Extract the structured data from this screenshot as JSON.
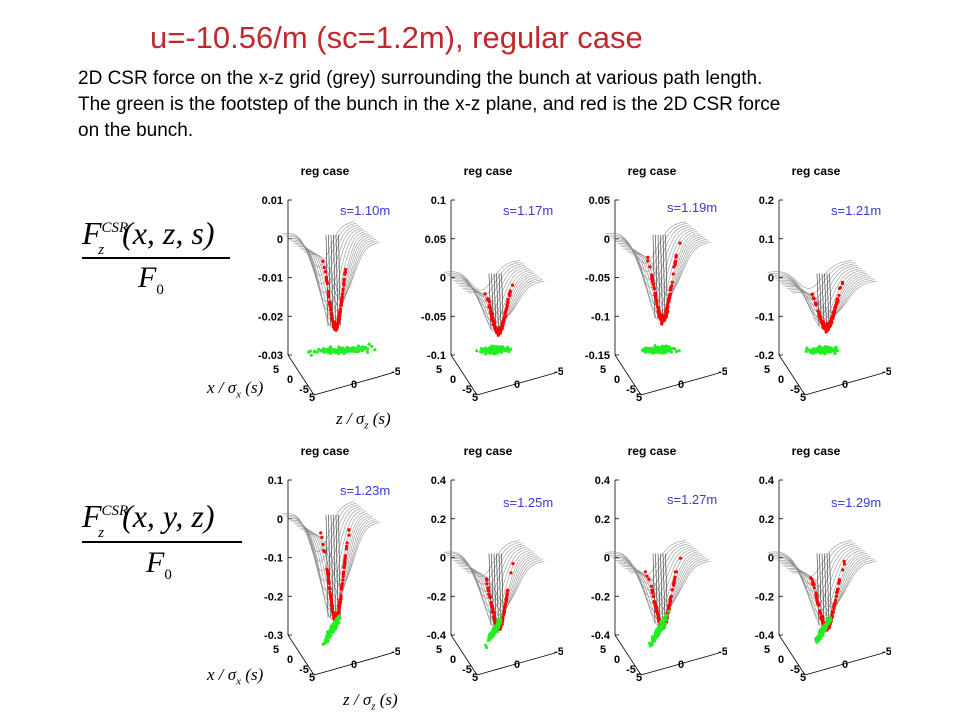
{
  "slide": {
    "title": "u=-10.56/m  (sc=1.2m), regular case",
    "description": [
      "2D CSR force on the x-z grid (grey) surrounding the bunch at various path length.",
      "The green is the footstep of the bunch in the x-z plane, and red is the 2D CSR force",
      "on the bunch."
    ]
  },
  "formulas": {
    "row1": {
      "numerator_base": "F",
      "superscript": "CSR",
      "subscript": "z",
      "args": "(x, z, s)",
      "denominator_base": "F",
      "denominator_sub": "0"
    },
    "row2": {
      "numerator_base": "F",
      "superscript": "CSR",
      "subscript": "z",
      "args": "(x, y, z)",
      "denominator_base": "F",
      "denominator_sub": "0"
    }
  },
  "axis_names": {
    "row1": {
      "x": {
        "base": "x / σ",
        "sub": "x",
        "arg": "(s)"
      },
      "z": {
        "base": "z / σ",
        "sub": "z",
        "arg": "(s)"
      }
    },
    "row2": {
      "x": {
        "base": "x / σ",
        "sub": "x",
        "arg": "(s)"
      },
      "z": {
        "base": "z / σ",
        "sub": "z",
        "arg": "(s)"
      }
    }
  },
  "colors": {
    "title": "#c0282d",
    "annotation": "#3a3ad8",
    "surface": "#8c8c8c",
    "force_points": "#ff0000",
    "footprint": "#22ee22"
  },
  "chart_data": [
    {
      "type": "scatter",
      "title": "reg case",
      "annotation": "s=1.10m",
      "yticks": [
        "0.01",
        "0",
        "-0.01",
        "-0.02",
        "-0.03"
      ],
      "ylim": [
        -0.03,
        0.01
      ],
      "xticks": [
        "5",
        "0",
        "-5"
      ],
      "zticks": [
        "5",
        "0",
        "-5"
      ],
      "min_force": -0.023
    },
    {
      "type": "scatter",
      "title": "reg case",
      "annotation": "s=1.17m",
      "yticks": [
        "0.1",
        "0.05",
        "0",
        "-0.05",
        "-0.1"
      ],
      "ylim": [
        -0.1,
        0.1
      ],
      "xticks": [
        "5",
        "0",
        "-5"
      ],
      "zticks": [
        "5",
        "0",
        "-5"
      ],
      "min_force": -0.07
    },
    {
      "type": "scatter",
      "title": "reg case",
      "annotation": "s=1.19m",
      "yticks": [
        "0.05",
        "0",
        "-0.05",
        "-0.1",
        "-0.15"
      ],
      "ylim": [
        -0.15,
        0.05
      ],
      "xticks": [
        "5",
        "0",
        "-5"
      ],
      "zticks": [
        "5",
        "0",
        "-5"
      ],
      "min_force": -0.105
    },
    {
      "type": "scatter",
      "title": "reg case",
      "annotation": "s=1.21m",
      "yticks": [
        "0.2",
        "0.1",
        "0",
        "-0.1",
        "-0.2"
      ],
      "ylim": [
        -0.2,
        0.2
      ],
      "xticks": [
        "5",
        "0",
        "-5"
      ],
      "zticks": [
        "5",
        "0",
        "-5"
      ],
      "min_force": -0.13
    },
    {
      "type": "scatter",
      "title": "reg case",
      "annotation": "s=1.23m",
      "yticks": [
        "0.1",
        "0",
        "-0.1",
        "-0.2",
        "-0.3"
      ],
      "ylim": [
        -0.3,
        0.1
      ],
      "xticks": [
        "5",
        "0",
        "-5"
      ],
      "zticks": [
        "5",
        "0",
        "-5"
      ],
      "min_force": -0.26
    },
    {
      "type": "scatter",
      "title": "reg case",
      "annotation": "s=1.25m",
      "yticks": [
        "0.4",
        "0.2",
        "0",
        "-0.2",
        "-0.4"
      ],
      "ylim": [
        -0.4,
        0.4
      ],
      "xticks": [
        "5",
        "0",
        "-5"
      ],
      "zticks": [
        "5",
        "0",
        "-5"
      ],
      "min_force": -0.36
    },
    {
      "type": "scatter",
      "title": "reg case",
      "annotation": "s=1.27m",
      "yticks": [
        "0.4",
        "0.2",
        "0",
        "-0.2",
        "-0.4"
      ],
      "ylim": [
        -0.4,
        0.4
      ],
      "xticks": [
        "5",
        "0",
        "-5"
      ],
      "zticks": [
        "5",
        "0",
        "-5"
      ],
      "min_force": -0.35
    },
    {
      "type": "scatter",
      "title": "reg case",
      "annotation": "s=1.29m",
      "yticks": [
        "0.4",
        "0.2",
        "0",
        "-0.2",
        "-0.4"
      ],
      "ylim": [
        -0.4,
        0.4
      ],
      "xticks": [
        "5",
        "0",
        "-5"
      ],
      "zticks": [
        "5",
        "0",
        "-5"
      ],
      "min_force": -0.36
    }
  ]
}
